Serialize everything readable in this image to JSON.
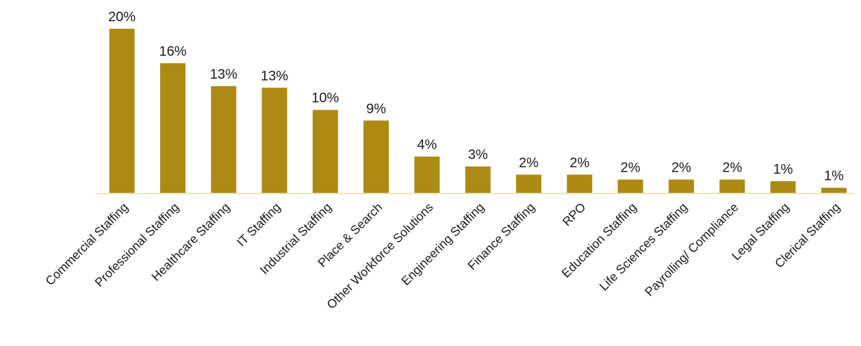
{
  "chart_data": {
    "type": "bar",
    "categories": [
      "Commercial Staffing",
      "Professional Staffing",
      "Healthcare Staffing",
      "IT Staffing",
      "Industrial Staffing",
      "Place & Search",
      "Other Workforce Solutions",
      "Engineering Staffing",
      "Finance Staffing",
      "RPO",
      "Education Staffing",
      "Life Sciences Staffing",
      "Payrolling/ Compliance",
      "Legal Staffing",
      "Clerical Staffing"
    ],
    "values": [
      20.1,
      15.9,
      13.1,
      12.9,
      10.2,
      8.9,
      4.5,
      3.3,
      2.3,
      2.3,
      1.7,
      1.7,
      1.7,
      1.5,
      0.7
    ],
    "data_labels": [
      "20%",
      "16%",
      "13%",
      "13%",
      "10%",
      "9%",
      "4%",
      "3%",
      "2%",
      "2%",
      "2%",
      "2%",
      "2%",
      "1%",
      "1%"
    ],
    "title": "",
    "xlabel": "",
    "ylabel": "",
    "ylim": [
      0,
      20.1
    ],
    "grid": false,
    "legend": "none",
    "bar_color": "#ad8a14",
    "baseline_color": "#f0e2b6",
    "text_color": "#1a1a1a"
  }
}
